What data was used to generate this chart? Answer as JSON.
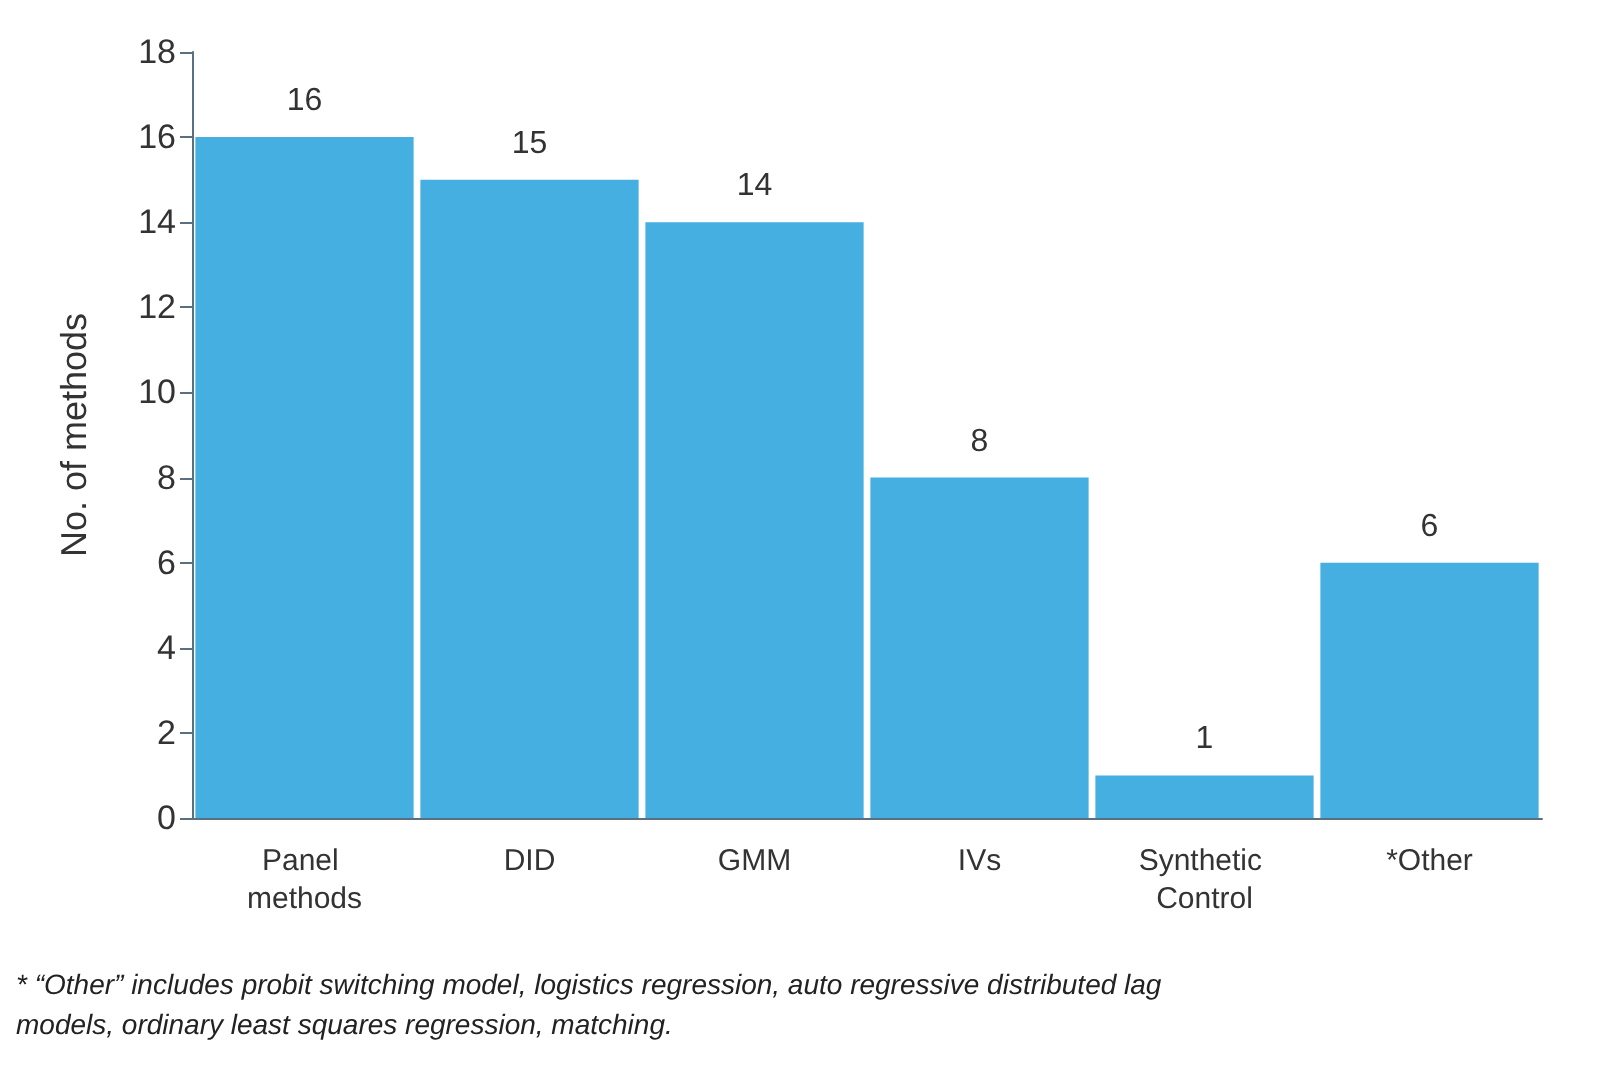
{
  "chart_data": {
    "type": "bar",
    "ylabel": "No. of methods",
    "categories": [
      "Panel methods",
      "DID",
      "GMM",
      "IVs",
      "Synthetic Control",
      "*Other"
    ],
    "values": [
      16,
      15,
      14,
      8,
      1,
      6
    ],
    "color": "#45afe1",
    "ylim": [
      0,
      18
    ],
    "yticks": [
      0,
      2,
      4,
      6,
      8,
      10,
      12,
      14,
      16,
      18
    ],
    "grid": false,
    "data_labels": true,
    "annotations": [
      "* “Other” includes probit switching model, logistics regression, auto regressive distributed lag models, ordinary least squares regression, matching."
    ]
  }
}
